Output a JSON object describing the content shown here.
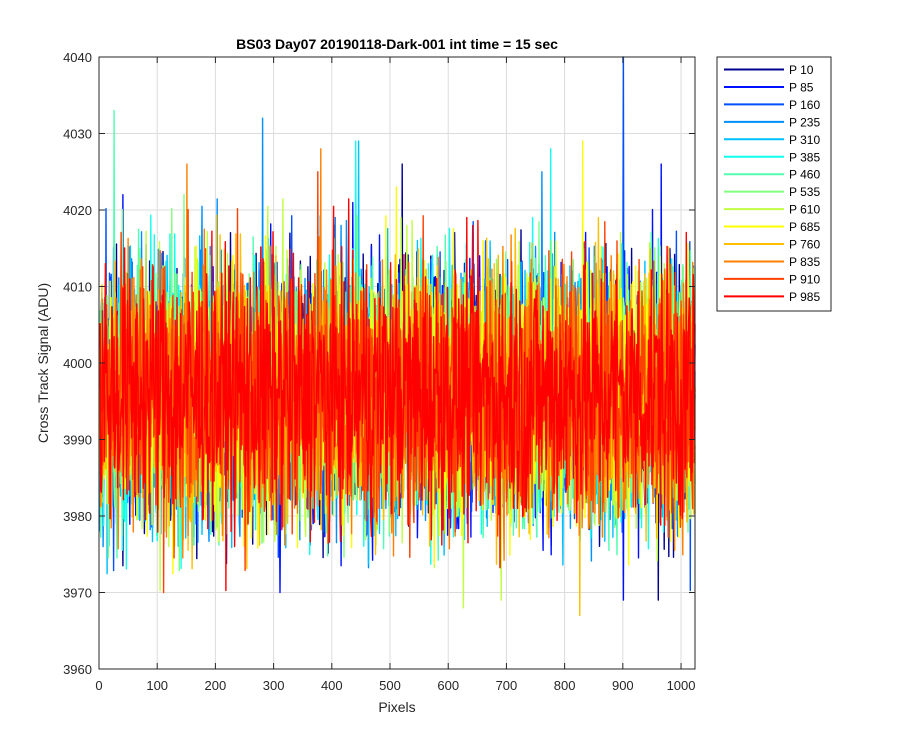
{
  "chart_data": {
    "type": "line",
    "title": "BS03 Day07 20190118-Dark-001 int time = 15 sec",
    "xlabel": "Pixels",
    "ylabel": "Cross Track Signal (ADU)",
    "xlim": [
      0,
      1024
    ],
    "ylim": [
      3960,
      4040
    ],
    "xticks": [
      0,
      100,
      200,
      300,
      400,
      500,
      600,
      700,
      800,
      900,
      1000
    ],
    "yticks": [
      3960,
      3970,
      3980,
      3990,
      4000,
      4010,
      4020,
      4030,
      4040
    ],
    "grid": true,
    "legend_position": "outside-right",
    "n_points": 1024,
    "series": [
      {
        "name": "P 10",
        "color": "#00008f",
        "mean": 3996,
        "peaks": [
          [
            520,
            4026
          ],
          [
            960,
            3969
          ]
        ]
      },
      {
        "name": "P 85",
        "color": "#0010ff",
        "mean": 3996,
        "peaks": [
          [
            40,
            4022
          ],
          [
            310,
            3970
          ],
          [
            900,
            3969
          ],
          [
            965,
            4026
          ]
        ]
      },
      {
        "name": "P 160",
        "color": "#0050ff",
        "mean": 3996,
        "peaks": [
          [
            900,
            4040
          ]
        ]
      },
      {
        "name": "P 235",
        "color": "#0090ff",
        "mean": 3996,
        "peaks": [
          [
            280,
            4032
          ],
          [
            760,
            4025
          ]
        ]
      },
      {
        "name": "P 310",
        "color": "#00c0ff",
        "mean": 3996,
        "peaks": [
          [
            445,
            4029
          ]
        ]
      },
      {
        "name": "P 385",
        "color": "#10ffef",
        "mean": 3996,
        "peaks": [
          [
            775,
            4028
          ],
          [
            440,
            4029
          ]
        ]
      },
      {
        "name": "P 460",
        "color": "#50ffaf",
        "mean": 3996,
        "peaks": [
          [
            25,
            4033
          ]
        ]
      },
      {
        "name": "P 535",
        "color": "#80ff80",
        "mean": 3996,
        "peaks": [
          [
            145,
            4022
          ]
        ]
      },
      {
        "name": "P 610",
        "color": "#c0ff40",
        "mean": 3996,
        "peaks": [
          [
            625,
            3968
          ],
          [
            690,
            3969
          ]
        ]
      },
      {
        "name": "P 685",
        "color": "#ffff00",
        "mean": 3996,
        "peaks": [
          [
            830,
            4029
          ],
          [
            510,
            4023
          ]
        ]
      },
      {
        "name": "P 760",
        "color": "#ffbf00",
        "mean": 3996,
        "peaks": [
          [
            825,
            3967
          ]
        ]
      },
      {
        "name": "P 835",
        "color": "#ff8000",
        "mean": 3996,
        "peaks": [
          [
            380,
            4028
          ],
          [
            150,
            4026
          ]
        ]
      },
      {
        "name": "P 910",
        "color": "#ff4000",
        "mean": 3996,
        "peaks": [
          [
            110,
            3970
          ],
          [
            375,
            4025
          ]
        ]
      },
      {
        "name": "P 985",
        "color": "#ff0000",
        "mean": 3996,
        "peaks": [
          [
            10,
            4013
          ]
        ]
      }
    ]
  }
}
